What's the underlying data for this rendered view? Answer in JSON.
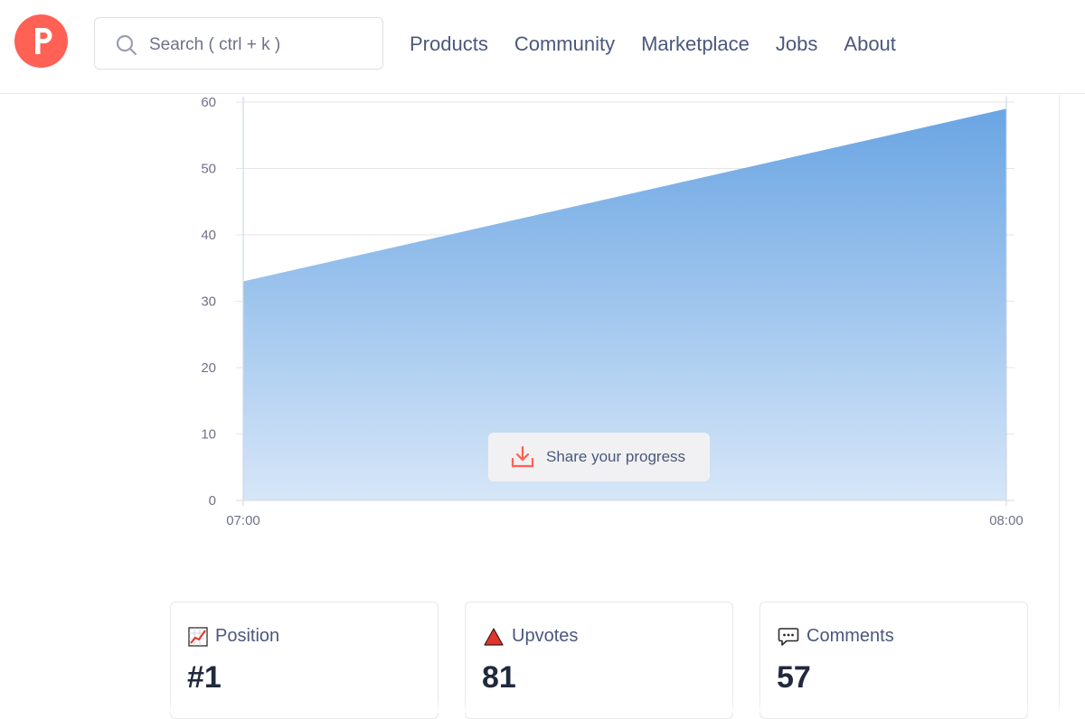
{
  "header": {
    "logo_letter": "P",
    "search": {
      "placeholder": "Search ( ctrl + k )",
      "value": ""
    },
    "nav": [
      "Products",
      "Community",
      "Marketplace",
      "Jobs",
      "About"
    ]
  },
  "chart_data": {
    "type": "area",
    "x": [
      "07:00",
      "08:00"
    ],
    "series": [
      {
        "values": [
          33,
          59
        ]
      }
    ],
    "ylim": [
      0,
      60
    ],
    "yticks": [
      0,
      10,
      20,
      30,
      40,
      50,
      60
    ],
    "grid": true,
    "colors": {
      "fill_top": "#6aa5e3",
      "fill_bottom": "#d6e6f8",
      "grid": "#e6e6ea"
    }
  },
  "share_button": {
    "label": "Share your progress",
    "icon": "download-icon"
  },
  "stats": [
    {
      "label": "Position",
      "value": "#1",
      "icon": "chart-increasing-icon"
    },
    {
      "label": "Upvotes",
      "value": "81",
      "icon": "upvote-triangle-icon"
    },
    {
      "label": "Comments",
      "value": "57",
      "icon": "comment-bubble-icon"
    }
  ],
  "colors": {
    "brand": "#ff6154",
    "text": "#4b587c",
    "value": "#21293c"
  }
}
